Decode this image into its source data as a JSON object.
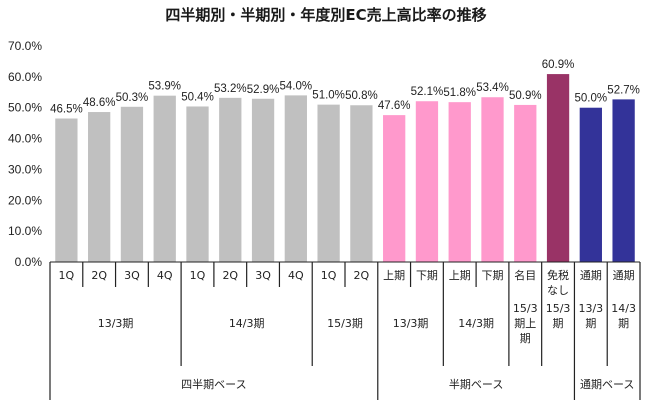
{
  "chart_data": {
    "type": "bar",
    "title": "四半期別・半期別・年度別EC売上高比率の推移",
    "ylim": [
      0,
      70
    ],
    "yticks": [
      "0.0%",
      "10.0%",
      "20.0%",
      "30.0%",
      "40.0%",
      "50.0%",
      "60.0%",
      "70.0%"
    ],
    "grid": false,
    "bars": [
      {
        "lines": [
          "1Q"
        ],
        "value": 46.5,
        "label": "46.5%",
        "color": "#c0c0c0"
      },
      {
        "lines": [
          "2Q"
        ],
        "value": 48.6,
        "label": "48.6%",
        "color": "#c0c0c0"
      },
      {
        "lines": [
          "3Q"
        ],
        "value": 50.3,
        "label": "50.3%",
        "color": "#c0c0c0"
      },
      {
        "lines": [
          "4Q"
        ],
        "value": 53.9,
        "label": "53.9%",
        "color": "#c0c0c0"
      },
      {
        "lines": [
          "1Q"
        ],
        "value": 50.4,
        "label": "50.4%",
        "color": "#c0c0c0"
      },
      {
        "lines": [
          "2Q"
        ],
        "value": 53.2,
        "label": "53.2%",
        "color": "#c0c0c0"
      },
      {
        "lines": [
          "3Q"
        ],
        "value": 52.9,
        "label": "52.9%",
        "color": "#c0c0c0"
      },
      {
        "lines": [
          "4Q"
        ],
        "value": 54.0,
        "label": "54.0%",
        "color": "#c0c0c0"
      },
      {
        "lines": [
          "1Q"
        ],
        "value": 51.0,
        "label": "51.0%",
        "color": "#c0c0c0"
      },
      {
        "lines": [
          "2Q"
        ],
        "value": 50.8,
        "label": "50.8%",
        "color": "#c0c0c0"
      },
      {
        "lines": [
          "上期"
        ],
        "value": 47.6,
        "label": "47.6%",
        "color": "#ff99cc"
      },
      {
        "lines": [
          "下期"
        ],
        "value": 52.1,
        "label": "52.1%",
        "color": "#ff99cc"
      },
      {
        "lines": [
          "上期"
        ],
        "value": 51.8,
        "label": "51.8%",
        "color": "#ff99cc"
      },
      {
        "lines": [
          "下期"
        ],
        "value": 53.4,
        "label": "53.4%",
        "color": "#ff99cc"
      },
      {
        "lines": [
          "名目"
        ],
        "value": 50.9,
        "label": "50.9%",
        "color": "#ff99cc"
      },
      {
        "lines": [
          "免税",
          "なし"
        ],
        "value": 60.9,
        "label": "60.9%",
        "color": "#993366"
      },
      {
        "lines": [
          "通期"
        ],
        "value": 50.0,
        "label": "50.0%",
        "color": "#333399"
      },
      {
        "lines": [
          "通期"
        ],
        "value": 52.7,
        "label": "52.7%",
        "color": "#333399"
      }
    ],
    "periods": [
      {
        "lines": [
          "13/3期"
        ],
        "start": 0,
        "end": 3
      },
      {
        "lines": [
          "14/3期"
        ],
        "start": 4,
        "end": 7
      },
      {
        "lines": [
          "15/3期"
        ],
        "start": 8,
        "end": 9
      },
      {
        "lines": [
          "13/3期"
        ],
        "start": 10,
        "end": 11
      },
      {
        "lines": [
          "14/3期"
        ],
        "start": 12,
        "end": 13
      },
      {
        "lines": [
          "15/3",
          "期上",
          "期"
        ],
        "start": 14,
        "end": 14
      },
      {
        "lines": [
          "15/3",
          "期"
        ],
        "start": 15,
        "end": 15
      },
      {
        "lines": [
          "13/3",
          "期"
        ],
        "start": 16,
        "end": 16
      },
      {
        "lines": [
          "14/3",
          "期"
        ],
        "start": 17,
        "end": 17
      }
    ],
    "groups": [
      {
        "label": "四半期ベース",
        "start": 0,
        "end": 9
      },
      {
        "label": "半期ベース",
        "start": 10,
        "end": 15
      },
      {
        "label": "通期ベース",
        "start": 16,
        "end": 17
      }
    ]
  }
}
